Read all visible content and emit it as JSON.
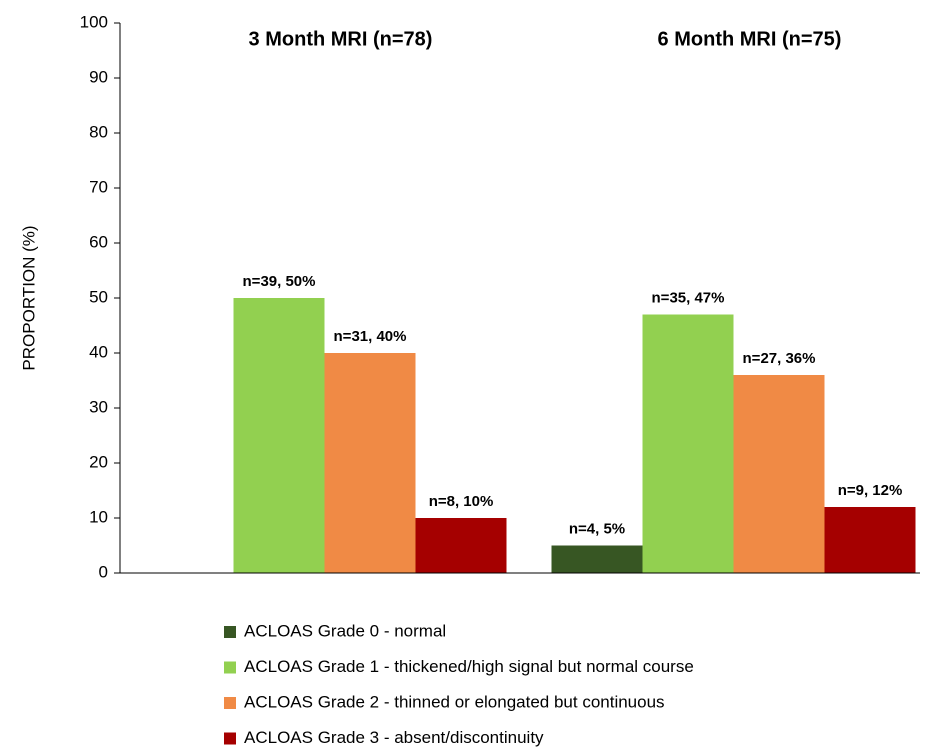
{
  "chart_data": {
    "type": "bar",
    "categories": [
      "3 Month MRI (n=78)",
      "6 Month MRI (n=75)"
    ],
    "ylabel": "PROPORTION (%)",
    "ylim": [
      0,
      100
    ],
    "yticks": [
      0,
      10,
      20,
      30,
      40,
      50,
      60,
      70,
      80,
      90,
      100
    ],
    "legend": "bottom",
    "series": [
      {
        "name": "ACLOAS Grade 0 - normal",
        "color": "#375623",
        "values": [
          null,
          5
        ],
        "value_labels": [
          null,
          "n=4, 5%"
        ]
      },
      {
        "name": "ACLOAS Grade 1 - thickened/high signal but normal course",
        "color": "#92d050",
        "values": [
          50,
          47
        ],
        "value_labels": [
          "n=39, 50%",
          "n=35, 47%"
        ]
      },
      {
        "name": "ACLOAS Grade 2 - thinned or elongated but continuous",
        "color": "#f08a45",
        "values": [
          40,
          36
        ],
        "value_labels": [
          "n=31, 40%",
          "n=27, 36%"
        ]
      },
      {
        "name": "ACLOAS Grade 3 - absent/discontinuity",
        "color": "#a50000",
        "values": [
          10,
          12
        ],
        "value_labels": [
          "n=8, 10%",
          "n=9, 12%"
        ]
      }
    ]
  }
}
